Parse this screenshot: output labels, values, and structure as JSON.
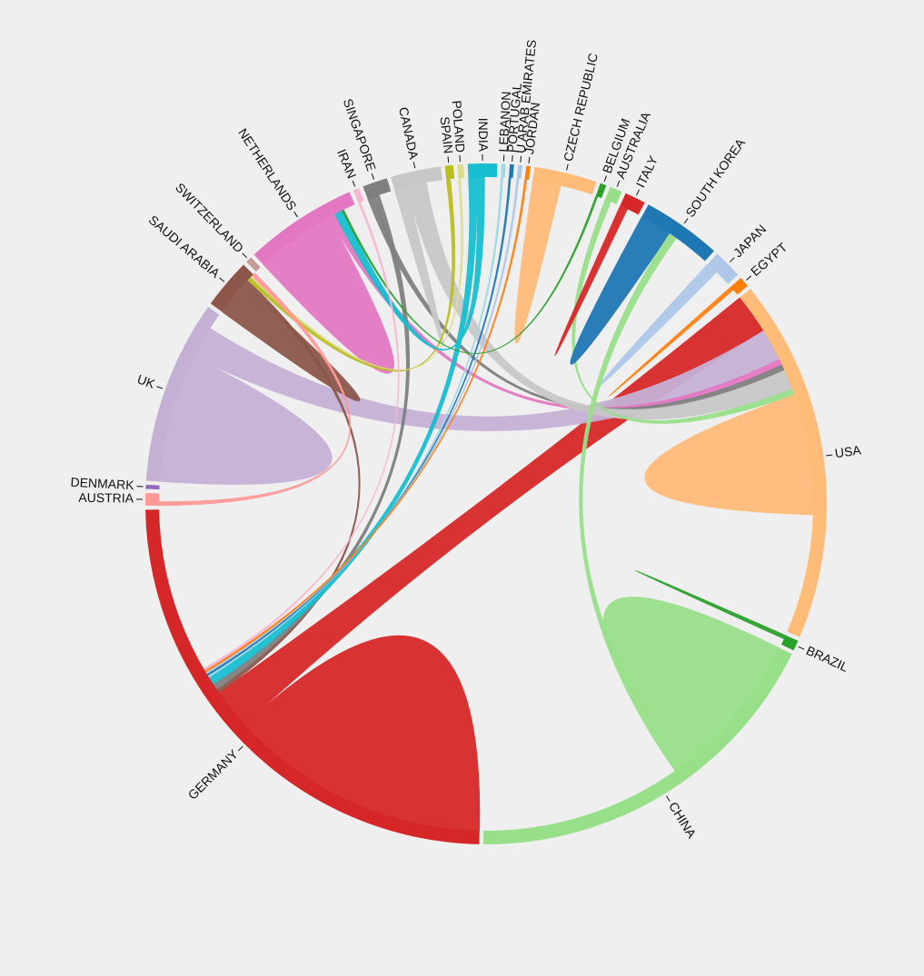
{
  "chart_data": {
    "type": "chord",
    "title": "",
    "groups": [
      {
        "name": "GERMANY",
        "color": "#d62728",
        "value": 123
      },
      {
        "name": "AUSTRIA",
        "color": "#ff9896",
        "value": 3
      },
      {
        "name": "DENMARK",
        "color": "#9467bd",
        "value": 1
      },
      {
        "name": "UK",
        "color": "#c5b0d5",
        "value": 44
      },
      {
        "name": "SAUDI ARABIA",
        "color": "#8c564b",
        "value": 12
      },
      {
        "name": "SWITZERLAND",
        "color": "#c49c94",
        "value": 1.5
      },
      {
        "name": "NETHERLANDS",
        "color": "#e377c2",
        "value": 27
      },
      {
        "name": "IRAN",
        "color": "#f7b6d2",
        "value": 1.5
      },
      {
        "name": "SINGAPORE",
        "color": "#7f7f7f",
        "value": 6
      },
      {
        "name": "CANADA",
        "color": "#c7c7c7",
        "value": 12
      },
      {
        "name": "SPAIN",
        "color": "#bcbd22",
        "value": 2
      },
      {
        "name": "POLAND",
        "color": "#dbdb8d",
        "value": 1.5
      },
      {
        "name": "INDIA",
        "color": "#17becf",
        "value": 7
      },
      {
        "name": "LEBANON",
        "color": "#9edae5",
        "value": 1
      },
      {
        "name": "PORTUGAL",
        "color": "#1f77b4",
        "value": 1
      },
      {
        "name": "U ARAB EMIRATES",
        "color": "#aec7e8",
        "value": 1
      },
      {
        "name": "JORDAN",
        "color": "#ff7f0e",
        "value": 1
      },
      {
        "name": "CZECH REPUBLIC",
        "color": "#ffbb78",
        "value": 15
      },
      {
        "name": "BELGIUM",
        "color": "#2ca02c",
        "value": 1.5
      },
      {
        "name": "AUSTRALIA",
        "color": "#98df8a",
        "value": 3
      },
      {
        "name": "ITALY",
        "color": "#d62728",
        "value": 5
      },
      {
        "name": "SOUTH KOREA",
        "color": "#1f77b4",
        "value": 19
      },
      {
        "name": "JAPAN",
        "color": "#aec7e8",
        "value": 7
      },
      {
        "name": "EGYPT",
        "color": "#ff7f0e",
        "value": 2.5
      },
      {
        "name": "USA",
        "color": "#ffbb78",
        "value": 87
      },
      {
        "name": "BRAZIL",
        "color": "#2ca02c",
        "value": 2.5
      },
      {
        "name": "CHINA",
        "color": "#98df8a",
        "value": 90
      }
    ],
    "chords": [
      {
        "source": "GERMANY",
        "target": "GERMANY",
        "value": 65
      },
      {
        "source": "GERMANY",
        "target": "USA",
        "value": 10
      },
      {
        "source": "UK",
        "target": "UK",
        "value": 32
      },
      {
        "source": "UK",
        "target": "USA",
        "value": 8
      },
      {
        "source": "SAUDI ARABIA",
        "target": "SAUDI ARABIA",
        "value": 9
      },
      {
        "source": "SAUDI ARABIA",
        "target": "GERMANY",
        "value": 1
      },
      {
        "source": "NETHERLANDS",
        "target": "NETHERLANDS",
        "value": 20
      },
      {
        "source": "NETHERLANDS",
        "target": "USA",
        "value": 1.5
      },
      {
        "source": "SINGAPORE",
        "target": "USA",
        "value": 1.5
      },
      {
        "source": "SINGAPORE",
        "target": "GERMANY",
        "value": 1.5
      },
      {
        "source": "CANADA",
        "target": "CANADA",
        "value": 3
      },
      {
        "source": "CANADA",
        "target": "USA",
        "value": 5
      },
      {
        "source": "SPAIN",
        "target": "SAUDI ARABIA",
        "value": 1
      },
      {
        "source": "POLAND",
        "target": "SAUDI ARABIA",
        "value": 0.5
      },
      {
        "source": "INDIA",
        "target": "GERMANY",
        "value": 2
      },
      {
        "source": "INDIA",
        "target": "NETHERLANDS",
        "value": 2
      },
      {
        "source": "LEBANON",
        "target": "GERMANY",
        "value": 0.5
      },
      {
        "source": "PORTUGAL",
        "target": "GERMANY",
        "value": 0.5
      },
      {
        "source": "U ARAB EMIRATES",
        "target": "GERMANY",
        "value": 0.5
      },
      {
        "source": "JORDAN",
        "target": "GERMANY",
        "value": 0.5
      },
      {
        "source": "CZECH REPUBLIC",
        "target": "CZECH REPUBLIC",
        "value": 7
      },
      {
        "source": "BELGIUM",
        "target": "NETHERLANDS",
        "value": 0.5
      },
      {
        "source": "AUSTRALIA",
        "target": "USA",
        "value": 1.5
      },
      {
        "source": "ITALY",
        "target": "ITALY",
        "value": 2
      },
      {
        "source": "SOUTH KOREA",
        "target": "SOUTH KOREA",
        "value": 8
      },
      {
        "source": "JAPAN",
        "target": "JAPAN",
        "value": 3
      },
      {
        "source": "EGYPT",
        "target": "EGYPT",
        "value": 1
      },
      {
        "source": "USA",
        "target": "USA",
        "value": 30
      },
      {
        "source": "BRAZIL",
        "target": "BRAZIL",
        "value": 1
      },
      {
        "source": "CHINA",
        "target": "CHINA",
        "value": 38
      },
      {
        "source": "CHINA",
        "target": "SOUTH KOREA",
        "value": 2
      },
      {
        "source": "AUSTRIA",
        "target": "SAUDI ARABIA",
        "value": 1
      },
      {
        "source": "IRAN",
        "target": "GERMANY",
        "value": 0.5
      }
    ]
  }
}
